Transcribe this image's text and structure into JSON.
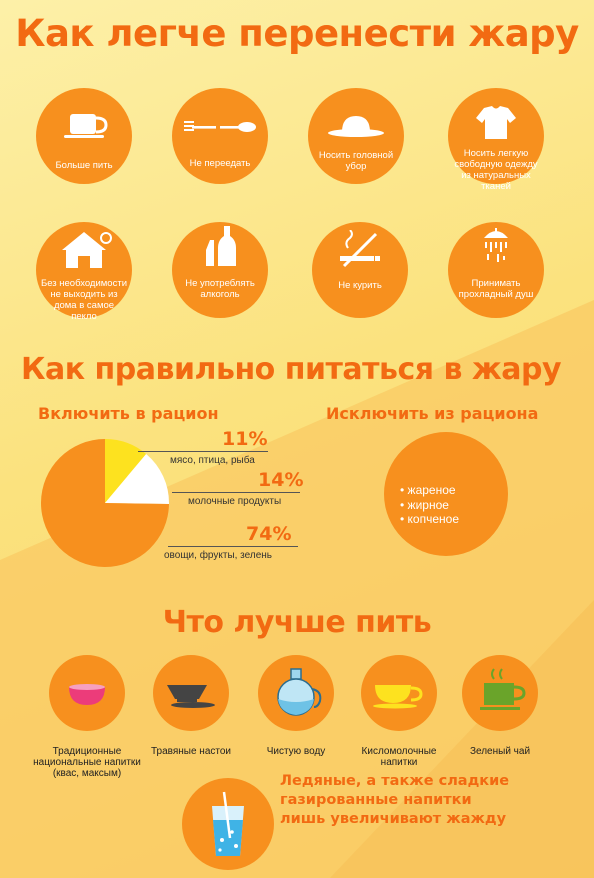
{
  "title": "Как легче перенести жару",
  "tips": [
    {
      "label": "Больше пить",
      "icon": "cup-icon"
    },
    {
      "label": "Не переедать",
      "icon": "fork-spoon-icon"
    },
    {
      "label": "Носить головной убор",
      "icon": "hat-icon"
    },
    {
      "label": "Носить легкую свободную одежду из натуральных тканей",
      "icon": "tshirt-icon"
    },
    {
      "label": "Без необходимости не выходить из дома в самое пекло",
      "icon": "house-icon"
    },
    {
      "label": "Не употреблять алкоголь",
      "icon": "bottle-icon"
    },
    {
      "label": "Не курить",
      "icon": "no-smoking-icon"
    },
    {
      "label": "Принимать прохладный душ",
      "icon": "shower-icon"
    }
  ],
  "nutrition": {
    "title": "Как правильно питаться в жару",
    "include_title": "Включить в рацион",
    "exclude_title": "Исключить из рациона",
    "exclude_items": [
      "• жареное",
      "• жирное",
      "• копченое"
    ]
  },
  "chart_data": {
    "type": "pie",
    "labels": [
      "мясо, птица, рыба",
      "молочные продукты",
      "овощи, фрукты, зелень"
    ],
    "values": [
      11,
      14,
      74
    ],
    "value_labels": [
      "11%",
      "14%",
      "74%"
    ],
    "colors": [
      "#fde21f",
      "#ffffff",
      "#f7901e"
    ]
  },
  "drinks": {
    "title": "Что лучше пить",
    "items": [
      {
        "label": "Традиционные национальные напитки (квас, максым)",
        "icon": "bowl-icon"
      },
      {
        "label": "Травяные настои",
        "icon": "teapot-cup-icon"
      },
      {
        "label": "Чистую воду",
        "icon": "water-jug-icon"
      },
      {
        "label": "Кисломолочные напитки",
        "icon": "yellow-cup-icon"
      },
      {
        "label": "Зеленый чай",
        "icon": "green-tea-icon"
      }
    ],
    "warning": "Ледяные, а также сладкие газированные напитки лишь увеличивают жажду"
  },
  "colors": {
    "orange": "#f7901e",
    "title_orange": "#f26a12",
    "yellow": "#fde21f",
    "background": "#fbe58a"
  }
}
